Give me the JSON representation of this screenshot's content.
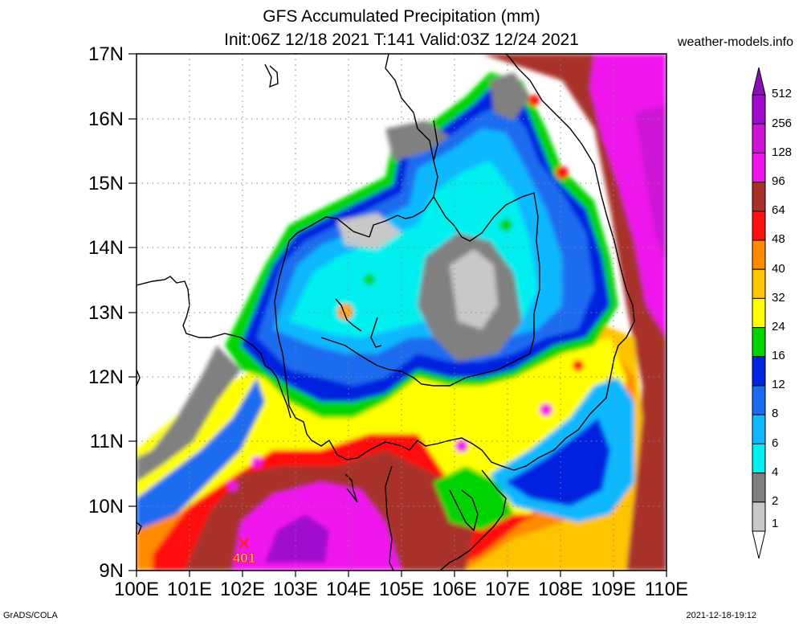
{
  "header": {
    "title": "GFS Accumulated Precipitation (mm)",
    "subtitle": "Init:06Z 12/18 2021 T:141 Valid:03Z 12/24 2021",
    "site": "weather-models.info"
  },
  "axes": {
    "lat_labels": [
      "17N",
      "16N",
      "15N",
      "14N",
      "13N",
      "12N",
      "11N",
      "10N",
      "9N"
    ],
    "lon_labels": [
      "100E",
      "101E",
      "102E",
      "103E",
      "104E",
      "105E",
      "106E",
      "107E",
      "108E",
      "109E",
      "110E"
    ]
  },
  "colorbar": {
    "levels": [
      "512",
      "256",
      "128",
      "96",
      "64",
      "48",
      "40",
      "32",
      "24",
      "16",
      "12",
      "8",
      "6",
      "4",
      "2",
      "1"
    ],
    "colors": [
      "#8b0fb8",
      "#a10ad0",
      "#cd12d6",
      "#f012ee",
      "#a8312b",
      "#ff0f0f",
      "#ff8a00",
      "#ffc400",
      "#ffff00",
      "#00d400",
      "#0024e0",
      "#1a6cf0",
      "#11b8ff",
      "#00f0f0",
      "#808080",
      "#c8c8c8"
    ]
  },
  "marker": {
    "label": "401",
    "symbol": "x-mark-icon",
    "color": "#ff2020"
  },
  "footer": {
    "left": "GrADS/COLA",
    "right": "2021-12-18-19:12"
  }
}
